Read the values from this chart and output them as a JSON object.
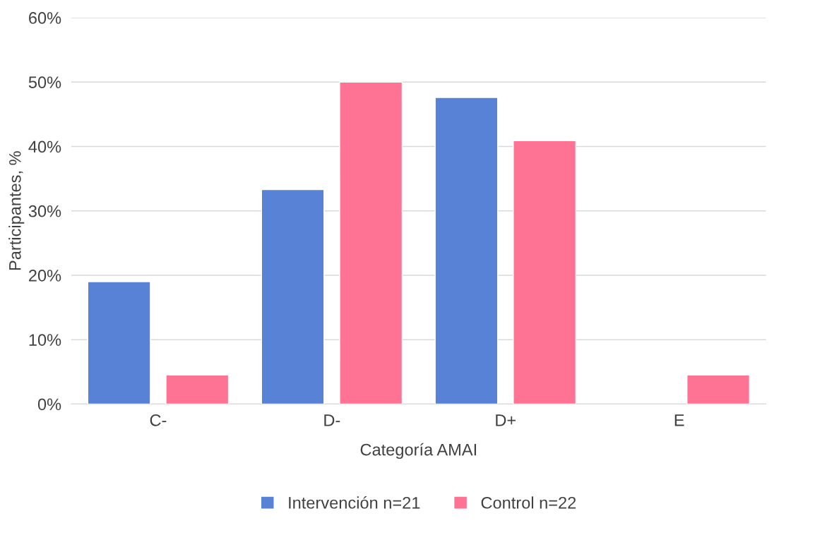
{
  "chart_data": {
    "type": "bar",
    "categories": [
      "C-",
      "D-",
      "D+",
      "E"
    ],
    "series": [
      {
        "name": "Intervención n=21",
        "color": "#5882d6",
        "values": [
          19.0,
          33.3,
          47.6,
          null
        ]
      },
      {
        "name": "Control n=22",
        "color": "#fe7393",
        "values": [
          4.5,
          50.0,
          40.9,
          4.5
        ]
      }
    ],
    "xlabel": "Categoría AMAI",
    "ylabel": "Participantes, %",
    "ylim": [
      0,
      60
    ],
    "yticks": [
      {
        "value": 0,
        "label": "0%"
      },
      {
        "value": 10,
        "label": "10%"
      },
      {
        "value": 20,
        "label": "20%"
      },
      {
        "value": 30,
        "label": "30%"
      },
      {
        "value": 40,
        "label": "40%"
      },
      {
        "value": 50,
        "label": "50%"
      },
      {
        "value": 60,
        "label": "60%"
      }
    ],
    "grid": "y",
    "legend": "bottom"
  }
}
